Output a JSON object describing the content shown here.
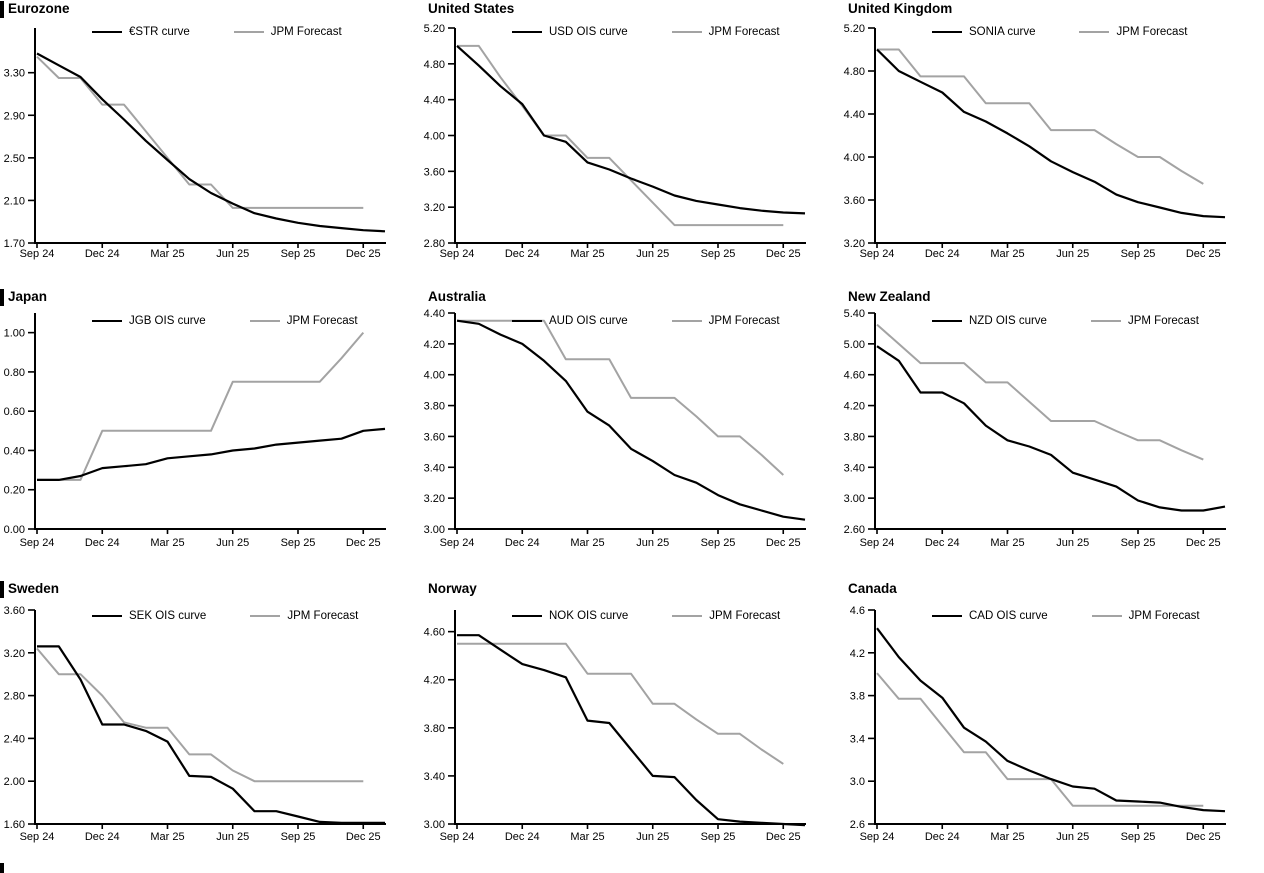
{
  "page": {
    "background": "#ffffff"
  },
  "colors": {
    "series_line": "#000000",
    "forecast_line": "#a3a3a3",
    "axis": "#000000"
  },
  "x_axis": {
    "tick_labels": [
      "Sep 24",
      "Dec 24",
      "Mar 25",
      "Jun 25",
      "Sep 25",
      "Dec 25"
    ],
    "tick_months": [
      0,
      3,
      6,
      9,
      12,
      15
    ],
    "months_total": 16
  },
  "chart_data": [
    {
      "type": "line",
      "title": "Eurozone",
      "left_section_bar": true,
      "legend_series": "€STR curve",
      "legend_forecast": "JPM Forecast",
      "legend_position": "top",
      "grid": false,
      "x_range": [
        "Sep 24",
        "Dec 25"
      ],
      "ylim": [
        1.7,
        3.72
      ],
      "ytick_labels": [
        "1.70",
        "2.10",
        "2.50",
        "2.90",
        "3.30"
      ],
      "series": [
        {
          "name": "€STR curve",
          "color": "#000000",
          "values": [
            3.48,
            3.37,
            3.26,
            3.05,
            2.86,
            2.66,
            2.48,
            2.3,
            2.17,
            2.07,
            1.98,
            1.93,
            1.89,
            1.86,
            1.84,
            1.82,
            1.81
          ]
        },
        {
          "name": "JPM Forecast",
          "color": "#a3a3a3",
          "values": [
            3.45,
            3.25,
            3.25,
            3.0,
            3.0,
            2.75,
            2.5,
            2.25,
            2.25,
            2.03,
            2.03,
            2.03,
            2.03,
            2.03,
            2.03,
            2.03
          ]
        }
      ]
    },
    {
      "type": "line",
      "title": "United States",
      "left_section_bar": false,
      "legend_series": "USD OIS curve",
      "legend_forecast": "JPM Forecast",
      "legend_position": "top",
      "grid": false,
      "x_range": [
        "Sep 24",
        "Dec 25"
      ],
      "ylim": [
        2.8,
        5.2
      ],
      "ytick_labels": [
        "2.80",
        "3.20",
        "3.60",
        "4.00",
        "4.40",
        "4.80",
        "5.20"
      ],
      "series": [
        {
          "name": "USD OIS curve",
          "color": "#000000",
          "values": [
            5.0,
            4.78,
            4.55,
            4.35,
            4.0,
            3.93,
            3.7,
            3.62,
            3.52,
            3.43,
            3.33,
            3.27,
            3.23,
            3.19,
            3.16,
            3.14,
            3.13
          ]
        },
        {
          "name": "JPM Forecast",
          "color": "#a3a3a3",
          "values": [
            5.0,
            5.0,
            4.65,
            4.33,
            4.0,
            4.0,
            3.75,
            3.75,
            3.5,
            3.25,
            3.0,
            3.0,
            3.0,
            3.0,
            3.0,
            3.0
          ]
        }
      ]
    },
    {
      "type": "line",
      "title": "United Kingdom",
      "left_section_bar": false,
      "legend_series": "SONIA curve",
      "legend_forecast": "JPM Forecast",
      "legend_position": "top",
      "grid": false,
      "x_range": [
        "Sep 24",
        "Dec 25"
      ],
      "ylim": [
        3.2,
        5.2
      ],
      "ytick_labels": [
        "3.20",
        "3.60",
        "4.00",
        "4.40",
        "4.80",
        "5.20"
      ],
      "series": [
        {
          "name": "SONIA curve",
          "color": "#000000",
          "values": [
            5.0,
            4.8,
            4.7,
            4.6,
            4.42,
            4.33,
            4.22,
            4.1,
            3.96,
            3.86,
            3.77,
            3.65,
            3.58,
            3.53,
            3.48,
            3.45,
            3.44
          ]
        },
        {
          "name": "JPM Forecast",
          "color": "#a3a3a3",
          "values": [
            5.0,
            5.0,
            4.75,
            4.75,
            4.75,
            4.5,
            4.5,
            4.5,
            4.25,
            4.25,
            4.25,
            4.12,
            4.0,
            4.0,
            3.87,
            3.75
          ]
        }
      ]
    },
    {
      "type": "line",
      "title": "Japan",
      "left_section_bar": true,
      "legend_series": "JGB OIS curve",
      "legend_forecast": "JPM Forecast",
      "legend_position": "top",
      "grid": false,
      "x_range": [
        "Sep 24",
        "Dec 25"
      ],
      "ylim": [
        0.0,
        1.1
      ],
      "ytick_labels": [
        "0.00",
        "0.20",
        "0.40",
        "0.60",
        "0.80",
        "1.00"
      ],
      "series": [
        {
          "name": "JGB OIS curve",
          "color": "#000000",
          "values": [
            0.25,
            0.25,
            0.27,
            0.31,
            0.32,
            0.33,
            0.36,
            0.37,
            0.38,
            0.4,
            0.41,
            0.43,
            0.44,
            0.45,
            0.46,
            0.5,
            0.51
          ]
        },
        {
          "name": "JPM Forecast",
          "color": "#a3a3a3",
          "values": [
            0.25,
            0.25,
            0.25,
            0.5,
            0.5,
            0.5,
            0.5,
            0.5,
            0.5,
            0.75,
            0.75,
            0.75,
            0.75,
            0.75,
            0.87,
            1.0
          ]
        }
      ]
    },
    {
      "type": "line",
      "title": "Australia",
      "left_section_bar": false,
      "legend_series": "AUD OIS curve",
      "legend_forecast": "JPM Forecast",
      "legend_position": "top",
      "grid": false,
      "x_range": [
        "Sep 24",
        "Dec 25"
      ],
      "ylim": [
        3.0,
        4.4
      ],
      "ytick_labels": [
        "3.00",
        "3.20",
        "3.40",
        "3.60",
        "3.80",
        "4.00",
        "4.20",
        "4.40"
      ],
      "series": [
        {
          "name": "AUD OIS curve",
          "color": "#000000",
          "values": [
            4.35,
            4.33,
            4.26,
            4.2,
            4.09,
            3.96,
            3.76,
            3.67,
            3.52,
            3.44,
            3.35,
            3.3,
            3.22,
            3.16,
            3.12,
            3.08,
            3.06
          ]
        },
        {
          "name": "JPM Forecast",
          "color": "#a3a3a3",
          "values": [
            4.35,
            4.35,
            4.35,
            4.35,
            4.35,
            4.1,
            4.1,
            4.1,
            3.85,
            3.85,
            3.85,
            3.73,
            3.6,
            3.6,
            3.48,
            3.35
          ]
        }
      ]
    },
    {
      "type": "line",
      "title": "New Zealand",
      "left_section_bar": false,
      "legend_series": "NZD OIS curve",
      "legend_forecast": "JPM Forecast",
      "legend_position": "top",
      "grid": false,
      "x_range": [
        "Sep 24",
        "Dec 25"
      ],
      "ylim": [
        2.6,
        5.4
      ],
      "ytick_labels": [
        "2.60",
        "3.00",
        "3.40",
        "3.80",
        "4.20",
        "4.60",
        "5.00",
        "5.40"
      ],
      "series": [
        {
          "name": "NZD OIS curve",
          "color": "#000000",
          "values": [
            4.97,
            4.78,
            4.37,
            4.37,
            4.23,
            3.94,
            3.75,
            3.67,
            3.56,
            3.33,
            3.24,
            3.15,
            2.97,
            2.88,
            2.84,
            2.84,
            2.89
          ]
        },
        {
          "name": "JPM Forecast",
          "color": "#a3a3a3",
          "values": [
            5.25,
            5.0,
            4.75,
            4.75,
            4.75,
            4.5,
            4.5,
            4.25,
            4.0,
            4.0,
            4.0,
            3.87,
            3.75,
            3.75,
            3.62,
            3.5
          ]
        }
      ]
    },
    {
      "type": "line",
      "title": "Sweden",
      "left_section_bar": true,
      "legend_series": "SEK OIS curve",
      "legend_forecast": "JPM Forecast",
      "legend_position": "top",
      "grid": false,
      "x_range": [
        "Sep 24",
        "Dec 25"
      ],
      "ylim": [
        1.6,
        3.6
      ],
      "ytick_labels": [
        "1.60",
        "2.00",
        "2.40",
        "2.80",
        "3.20",
        "3.60"
      ],
      "series": [
        {
          "name": "SEK OIS curve",
          "color": "#000000",
          "values": [
            3.26,
            3.26,
            2.95,
            2.53,
            2.53,
            2.47,
            2.37,
            2.05,
            2.04,
            1.93,
            1.72,
            1.72,
            1.67,
            1.62,
            1.61,
            1.61,
            1.61
          ]
        },
        {
          "name": "JPM Forecast",
          "color": "#a3a3a3",
          "values": [
            3.24,
            3.0,
            3.0,
            2.8,
            2.55,
            2.5,
            2.5,
            2.25,
            2.25,
            2.1,
            2.0,
            2.0,
            2.0,
            2.0,
            2.0,
            2.0
          ]
        }
      ]
    },
    {
      "type": "line",
      "title": "Norway",
      "left_section_bar": false,
      "legend_series": "NOK OIS curve",
      "legend_forecast": "JPM Forecast",
      "legend_position": "top",
      "grid": false,
      "x_range": [
        "Sep 24",
        "Dec 25"
      ],
      "ylim": [
        3.0,
        4.78
      ],
      "ytick_labels": [
        "3.00",
        "3.40",
        "3.80",
        "4.20",
        "4.60"
      ],
      "series": [
        {
          "name": "NOK OIS curve",
          "color": "#000000",
          "values": [
            4.57,
            4.57,
            4.45,
            4.33,
            4.28,
            4.22,
            3.86,
            3.84,
            3.62,
            3.4,
            3.39,
            3.2,
            3.04,
            3.02,
            3.01,
            3.0,
            2.99
          ]
        },
        {
          "name": "JPM Forecast",
          "color": "#a3a3a3",
          "values": [
            4.5,
            4.5,
            4.5,
            4.5,
            4.5,
            4.5,
            4.25,
            4.25,
            4.25,
            4.0,
            4.0,
            3.87,
            3.75,
            3.75,
            3.62,
            3.5
          ]
        }
      ]
    },
    {
      "type": "line",
      "title": "Canada",
      "left_section_bar": false,
      "legend_series": "CAD OIS curve",
      "legend_forecast": "JPM Forecast",
      "legend_position": "top",
      "grid": false,
      "x_range": [
        "Sep 24",
        "Dec 25"
      ],
      "ylim": [
        2.6,
        4.6
      ],
      "ytick_labels": [
        "2.6",
        "3.0",
        "3.4",
        "3.8",
        "4.2",
        "4.6"
      ],
      "series": [
        {
          "name": "CAD OIS curve",
          "color": "#000000",
          "values": [
            4.43,
            4.16,
            3.94,
            3.78,
            3.5,
            3.37,
            3.19,
            3.1,
            3.02,
            2.95,
            2.93,
            2.82,
            2.81,
            2.8,
            2.76,
            2.73,
            2.72
          ]
        },
        {
          "name": "JPM Forecast",
          "color": "#a3a3a3",
          "values": [
            4.01,
            3.77,
            3.77,
            3.52,
            3.27,
            3.27,
            3.02,
            3.02,
            3.02,
            2.77,
            2.77,
            2.77,
            2.77,
            2.77,
            2.77,
            2.77
          ]
        }
      ]
    }
  ]
}
